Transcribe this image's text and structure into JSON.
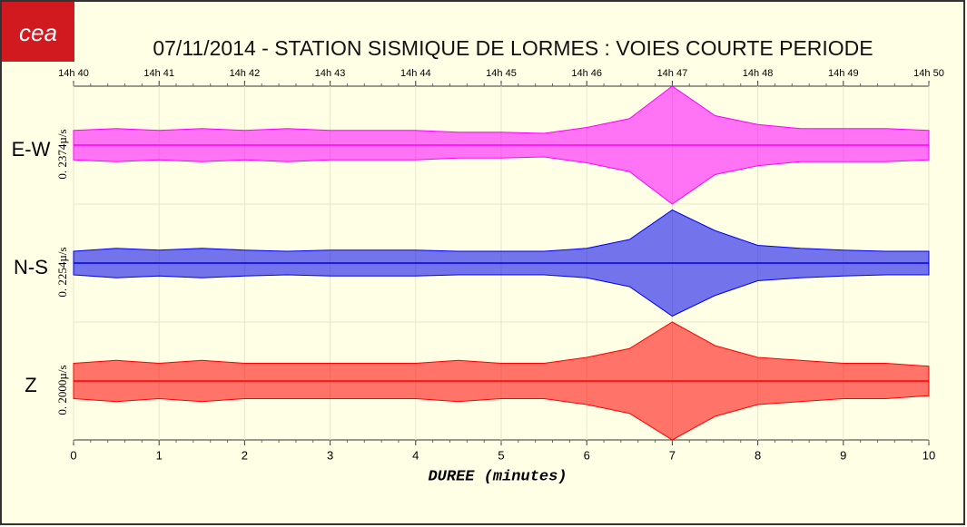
{
  "chart_data": {
    "type": "seismogram",
    "logo": "cea",
    "title": "07/11/2014  -  STATION SISMIQUE DE LORMES : VOIES COURTE PERIODE",
    "xlabel": "DUREE (minutes)",
    "xlim": [
      0,
      10
    ],
    "xticks": [
      0,
      1,
      2,
      3,
      4,
      5,
      6,
      7,
      8,
      9,
      10
    ],
    "top_ticks": [
      {
        "value": 0,
        "label": "14h 40"
      },
      {
        "value": 1,
        "label": "14h 41"
      },
      {
        "value": 2,
        "label": "14h 42"
      },
      {
        "value": 3,
        "label": "14h 43"
      },
      {
        "value": 4,
        "label": "14h 44"
      },
      {
        "value": 5,
        "label": "14h 45"
      },
      {
        "value": 6,
        "label": "14h 46"
      },
      {
        "value": 7,
        "label": "14h 47"
      },
      {
        "value": 8,
        "label": "14h 48"
      },
      {
        "value": 9,
        "label": "14h 49"
      },
      {
        "value": 10,
        "label": "14h 50"
      }
    ],
    "ylim": [
      -1,
      1
    ],
    "grid": true,
    "x": [
      0,
      0.5,
      1,
      1.5,
      2,
      2.5,
      3,
      3.5,
      4,
      4.5,
      5,
      5.5,
      6,
      6.5,
      7,
      7.5,
      8,
      8.5,
      9,
      9.5,
      10
    ],
    "series": [
      {
        "name": "E-W",
        "scale_label": "0. 2374µ/s",
        "color": "#ff00ff",
        "values": [
          0.25,
          0.28,
          0.25,
          0.28,
          0.25,
          0.28,
          0.25,
          0.25,
          0.25,
          0.22,
          0.22,
          0.2,
          0.3,
          0.45,
          1.0,
          0.5,
          0.35,
          0.28,
          0.28,
          0.28,
          0.25
        ]
      },
      {
        "name": "N-S",
        "scale_label": "0. 2254µ/s",
        "color": "#0000ee",
        "values": [
          0.2,
          0.25,
          0.22,
          0.25,
          0.22,
          0.2,
          0.22,
          0.22,
          0.22,
          0.2,
          0.2,
          0.2,
          0.25,
          0.4,
          0.9,
          0.55,
          0.3,
          0.25,
          0.22,
          0.2,
          0.2
        ]
      },
      {
        "name": "Z",
        "scale_label": "0. 2000µ/s",
        "color": "#ff0000",
        "values": [
          0.3,
          0.35,
          0.3,
          0.35,
          0.3,
          0.3,
          0.3,
          0.3,
          0.3,
          0.35,
          0.3,
          0.3,
          0.4,
          0.55,
          1.0,
          0.6,
          0.4,
          0.35,
          0.3,
          0.3,
          0.25
        ]
      }
    ]
  }
}
